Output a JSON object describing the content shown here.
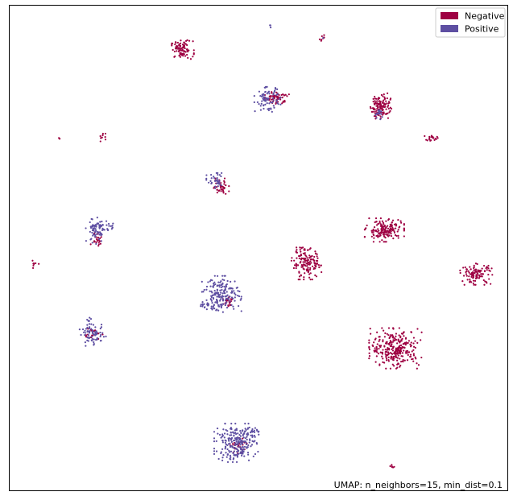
{
  "chart_data": {
    "type": "scatter",
    "title": "",
    "xlabel": "",
    "ylabel": "",
    "xlim": [
      0,
      100
    ],
    "ylim": [
      0,
      100
    ],
    "grid": false,
    "legend_position": "top-right",
    "annotation": "UMAP: n_neighbors=15, min_dist=0.1",
    "series": [
      {
        "name": "Negative",
        "color": "#9e0142",
        "clusters": [
          {
            "cx": 34.6,
            "cy": 90.9,
            "sx": 1.1,
            "sy": 0.9,
            "n": 90
          },
          {
            "cx": 53.7,
            "cy": 81.0,
            "sx": 1.1,
            "sy": 0.6,
            "n": 60
          },
          {
            "cx": 74.5,
            "cy": 79.3,
            "sx": 1.0,
            "sy": 1.3,
            "n": 120
          },
          {
            "cx": 62.9,
            "cy": 93.4,
            "sx": 0.3,
            "sy": 0.3,
            "n": 8
          },
          {
            "cx": 84.7,
            "cy": 72.6,
            "sx": 0.6,
            "sy": 0.3,
            "n": 20
          },
          {
            "cx": 18.8,
            "cy": 72.8,
            "sx": 0.4,
            "sy": 0.4,
            "n": 10
          },
          {
            "cx": 10.0,
            "cy": 72.6,
            "sx": 0.15,
            "sy": 0.15,
            "n": 3
          },
          {
            "cx": 42.3,
            "cy": 62.6,
            "sx": 0.8,
            "sy": 0.8,
            "n": 50
          },
          {
            "cx": 75.3,
            "cy": 53.7,
            "sx": 1.8,
            "sy": 1.1,
            "n": 170
          },
          {
            "cx": 59.7,
            "cy": 46.8,
            "sx": 1.4,
            "sy": 1.5,
            "n": 150
          },
          {
            "cx": 93.8,
            "cy": 44.6,
            "sx": 1.5,
            "sy": 1.0,
            "n": 110
          },
          {
            "cx": 5.0,
            "cy": 46.6,
            "sx": 0.4,
            "sy": 0.4,
            "n": 8
          },
          {
            "cx": 17.6,
            "cy": 52.0,
            "sx": 0.6,
            "sy": 0.7,
            "n": 25
          },
          {
            "cx": 44.0,
            "cy": 38.8,
            "sx": 0.6,
            "sy": 0.8,
            "n": 25
          },
          {
            "cx": 77.5,
            "cy": 29.3,
            "sx": 2.4,
            "sy": 1.9,
            "n": 280
          },
          {
            "cx": 16.7,
            "cy": 32.2,
            "sx": 0.9,
            "sy": 0.6,
            "n": 25
          },
          {
            "cx": 45.8,
            "cy": 9.4,
            "sx": 0.9,
            "sy": 0.8,
            "n": 30
          },
          {
            "cx": 77.2,
            "cy": 4.8,
            "sx": 0.4,
            "sy": 0.25,
            "n": 6
          }
        ]
      },
      {
        "name": "Positive",
        "color": "#5e4fa2",
        "clusters": [
          {
            "cx": 51.8,
            "cy": 80.6,
            "sx": 1.2,
            "sy": 1.2,
            "n": 80
          },
          {
            "cx": 74.2,
            "cy": 77.6,
            "sx": 0.5,
            "sy": 0.7,
            "n": 15
          },
          {
            "cx": 52.4,
            "cy": 95.9,
            "sx": 0.1,
            "sy": 0.2,
            "n": 3
          },
          {
            "cx": 41.5,
            "cy": 63.7,
            "sx": 0.9,
            "sy": 0.8,
            "n": 35
          },
          {
            "cx": 17.5,
            "cy": 53.7,
            "sx": 1.0,
            "sy": 1.3,
            "n": 80
          },
          {
            "cx": 20.4,
            "cy": 54.2,
            "sx": 0.5,
            "sy": 0.5,
            "n": 10
          },
          {
            "cx": 42.6,
            "cy": 40.5,
            "sx": 1.8,
            "sy": 1.7,
            "n": 180
          },
          {
            "cx": 40.0,
            "cy": 38.5,
            "sx": 0.9,
            "sy": 0.5,
            "n": 20
          },
          {
            "cx": 16.7,
            "cy": 32.0,
            "sx": 1.2,
            "sy": 1.0,
            "n": 70
          },
          {
            "cx": 16.2,
            "cy": 35.0,
            "sx": 0.3,
            "sy": 0.5,
            "n": 8
          },
          {
            "cx": 45.5,
            "cy": 9.8,
            "sx": 2.0,
            "sy": 1.8,
            "n": 230
          },
          {
            "cx": 48.5,
            "cy": 12.2,
            "sx": 0.7,
            "sy": 0.6,
            "n": 25
          },
          {
            "cx": 62.9,
            "cy": 93.3,
            "sx": 0.1,
            "sy": 0.1,
            "n": 1
          }
        ]
      }
    ]
  }
}
